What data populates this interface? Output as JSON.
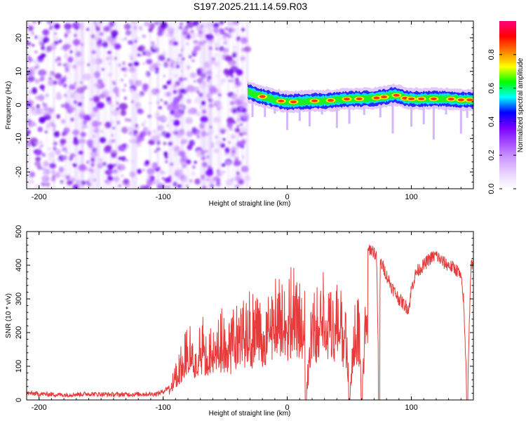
{
  "title": "S197.2025.211.14.59.R03",
  "colors": {
    "snr_line": "#e83a3a",
    "noise_purple": "#8a2be2",
    "colormap_stops": [
      "#ffffff",
      "#e9d3ff",
      "#cf9bff",
      "#a64dff",
      "#7a00ff",
      "#0000ff",
      "#00ffff",
      "#00ff00",
      "#ffff00",
      "#ff8000",
      "#ff0000",
      "#ff0080"
    ]
  },
  "chart_data": [
    {
      "type": "heatmap",
      "xlabel": "Height of straight line (km)",
      "ylabel": "Frequency (Hz)",
      "xlim": [
        -210,
        150
      ],
      "ylim": [
        -25,
        25
      ],
      "xticks": [
        -200,
        -100,
        0,
        100
      ],
      "xtick_labels": [
        "-200",
        "-100",
        "0",
        "100"
      ],
      "yticks": [
        -20,
        -10,
        0,
        10,
        20
      ],
      "ytick_labels": [
        "-20",
        "-10",
        "0",
        "10",
        "20"
      ],
      "noise_region_x": [
        -210,
        -32
      ],
      "signal_line": {
        "x": [
          -32,
          -25,
          -20,
          -15,
          -10,
          0,
          10,
          20,
          30,
          40,
          50,
          60,
          70,
          75,
          80,
          85,
          90,
          95,
          100,
          110,
          120,
          130,
          140,
          150
        ],
        "freq": [
          4,
          3,
          2.5,
          2,
          1.5,
          0.8,
          1,
          1.2,
          1.2,
          1.5,
          1.8,
          1.8,
          2,
          2.2,
          2.5,
          3,
          2.8,
          2,
          1.8,
          1.8,
          1.8,
          1.8,
          1.5,
          1.5
        ]
      },
      "colorbar": {
        "label": "Normalized spectral amplitude",
        "range": [
          0,
          1
        ],
        "ticks": [
          0.0,
          0.2,
          0.4,
          0.6,
          0.8
        ],
        "tick_labels": [
          "0.0",
          "0.2",
          "0.4",
          "0.6",
          "0.8"
        ]
      }
    },
    {
      "type": "line",
      "xlabel": "Height of straight line (km)",
      "ylabel": "SNR (10 * v/v)",
      "xlim": [
        -210,
        150
      ],
      "ylim": [
        0,
        500
      ],
      "xticks": [
        -200,
        -100,
        0,
        100
      ],
      "xtick_labels": [
        "-200",
        "-100",
        "0",
        "100"
      ],
      "yticks": [
        0,
        100,
        200,
        300,
        400,
        500
      ],
      "ytick_labels": [
        "0",
        "100",
        "200",
        "300",
        "400",
        "500"
      ],
      "series": [
        {
          "x": [
            -210,
            -200,
            -180,
            -160,
            -140,
            -120,
            -105,
            -100,
            -95,
            -92,
            -90,
            -85,
            -80,
            -75,
            -70,
            -65,
            -60,
            -55,
            -50,
            -45,
            -40,
            -35,
            -30,
            -25,
            -20,
            -15,
            -10,
            -5,
            0,
            5,
            10,
            14,
            15,
            20,
            25,
            30,
            35,
            40,
            45,
            48,
            50,
            55,
            58,
            60,
            63,
            65,
            66,
            70,
            72,
            74,
            75,
            78,
            80,
            85,
            90,
            95,
            98,
            100,
            104,
            110,
            115,
            120,
            125,
            130,
            135,
            138,
            140,
            142,
            145,
            148,
            150
          ],
          "y": [
            20,
            18,
            15,
            18,
            16,
            17,
            18,
            25,
            40,
            70,
            90,
            150,
            180,
            170,
            210,
            180,
            200,
            210,
            230,
            215,
            240,
            255,
            270,
            260,
            280,
            290,
            300,
            310,
            320,
            330,
            300,
            280,
            0,
            300,
            310,
            320,
            310,
            290,
            270,
            250,
            0,
            270,
            260,
            0,
            280,
            430,
            450,
            440,
            420,
            0,
            410,
            390,
            370,
            330,
            300,
            280,
            270,
            330,
            380,
            400,
            420,
            430,
            410,
            400,
            390,
            380,
            360,
            300,
            0,
            400,
            410
          ]
        }
      ]
    }
  ]
}
